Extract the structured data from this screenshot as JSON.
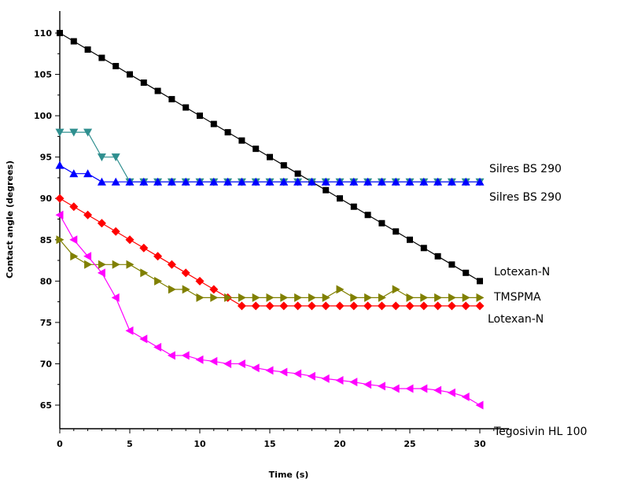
{
  "chart_data": {
    "type": "line",
    "title": "",
    "xlabel": "Time (s)",
    "ylabel": "Contact angle (degrees)",
    "xlim": [
      0,
      32
    ],
    "ylim": [
      62.5,
      112.5
    ],
    "x_ticks": [
      0,
      5,
      10,
      15,
      20,
      25,
      30
    ],
    "y_ticks": [
      65,
      70,
      75,
      80,
      85,
      90,
      95,
      100,
      105,
      110
    ],
    "grid": false,
    "legend": "labels at right end of each series",
    "series": [
      {
        "name": "Lotexan-N",
        "label_text": "Lotexan-N",
        "color": "#000000",
        "marker": "square",
        "x": [
          0,
          1,
          2,
          3,
          4,
          5,
          6,
          7,
          8,
          9,
          10,
          11,
          12,
          13,
          14,
          15,
          16,
          17,
          18,
          19,
          20,
          21,
          22,
          23,
          24,
          25,
          26,
          27,
          28,
          29,
          30
        ],
        "y": [
          110,
          109,
          108,
          107,
          106,
          105,
          104,
          103,
          102,
          101,
          100,
          99,
          98,
          97,
          96,
          95,
          94,
          93,
          92,
          91,
          90,
          89,
          88,
          87,
          86,
          85,
          84,
          83,
          82,
          81,
          80
        ]
      },
      {
        "name": "Silres BS 290",
        "label_text": "Silres BS 290",
        "color": "#2f8f8f",
        "marker": "triangle-down",
        "x": [
          0,
          1,
          2,
          3,
          4,
          5,
          6,
          7,
          8,
          9,
          10,
          11,
          12,
          13,
          14,
          15,
          16,
          17,
          18,
          19,
          20,
          21,
          22,
          23,
          24,
          25,
          26,
          27,
          28,
          29,
          30
        ],
        "y": [
          98,
          98,
          98,
          95,
          95,
          92,
          92,
          92,
          92,
          92,
          92,
          92,
          92,
          92,
          92,
          92,
          92,
          92,
          92,
          92,
          92,
          92,
          92,
          92,
          92,
          92,
          92,
          92,
          92,
          92,
          92
        ]
      },
      {
        "name": "Silres BS 290 (2)",
        "label_text": "Silres BS 290",
        "color": "#0000ff",
        "marker": "triangle-up",
        "x": [
          0,
          1,
          2,
          3,
          4,
          5,
          6,
          7,
          8,
          9,
          10,
          11,
          12,
          13,
          14,
          15,
          16,
          17,
          18,
          19,
          20,
          21,
          22,
          23,
          24,
          25,
          26,
          27,
          28,
          29,
          30
        ],
        "y": [
          94,
          93,
          93,
          92,
          92,
          92,
          92,
          92,
          92,
          92,
          92,
          92,
          92,
          92,
          92,
          92,
          92,
          92,
          92,
          92,
          92,
          92,
          92,
          92,
          92,
          92,
          92,
          92,
          92,
          92,
          92
        ]
      },
      {
        "name": "Lotexan-N (2)",
        "label_text": "Lotexan-N",
        "color": "#ff0000",
        "marker": "diamond",
        "x": [
          0,
          1,
          2,
          3,
          4,
          5,
          6,
          7,
          8,
          9,
          10,
          11,
          12,
          13,
          14,
          15,
          16,
          17,
          18,
          19,
          20,
          21,
          22,
          23,
          24,
          25,
          26,
          27,
          28,
          29,
          30
        ],
        "y": [
          90,
          89,
          88,
          87,
          86,
          85,
          84,
          83,
          82,
          81,
          80,
          79,
          78,
          77,
          77,
          77,
          77,
          77,
          77,
          77,
          77,
          77,
          77,
          77,
          77,
          77,
          77,
          77,
          77,
          77,
          77
        ]
      },
      {
        "name": "TMSPMA",
        "label_text": "TMSPMA",
        "color": "#808000",
        "marker": "triangle-right",
        "x": [
          0,
          1,
          2,
          3,
          4,
          5,
          6,
          7,
          8,
          9,
          10,
          11,
          12,
          13,
          14,
          15,
          16,
          17,
          18,
          19,
          20,
          21,
          22,
          23,
          24,
          25,
          26,
          27,
          28,
          29,
          30
        ],
        "y": [
          85,
          83,
          82,
          82,
          82,
          82,
          81,
          80,
          79,
          79,
          78,
          78,
          78,
          78,
          78,
          78,
          78,
          78,
          78,
          78,
          79,
          78,
          78,
          78,
          79,
          78,
          78,
          78,
          78,
          78,
          78
        ]
      },
      {
        "name": "Tegosivin HL 100",
        "label_text": "Tegosivin HL 100",
        "color": "#ff00ff",
        "marker": "triangle-left",
        "x": [
          0,
          1,
          2,
          3,
          4,
          5,
          6,
          7,
          8,
          9,
          10,
          11,
          12,
          13,
          14,
          15,
          16,
          17,
          18,
          19,
          20,
          21,
          22,
          23,
          24,
          25,
          26,
          27,
          28,
          29,
          30
        ],
        "y": [
          88,
          85,
          83,
          81,
          78,
          74,
          73,
          72,
          71,
          71,
          70.5,
          70.3,
          70,
          70,
          69.5,
          69.2,
          69,
          68.8,
          68.5,
          68.2,
          68,
          67.8,
          67.5,
          67.3,
          67,
          67,
          67,
          66.8,
          66.5,
          66,
          65
        ]
      }
    ]
  }
}
